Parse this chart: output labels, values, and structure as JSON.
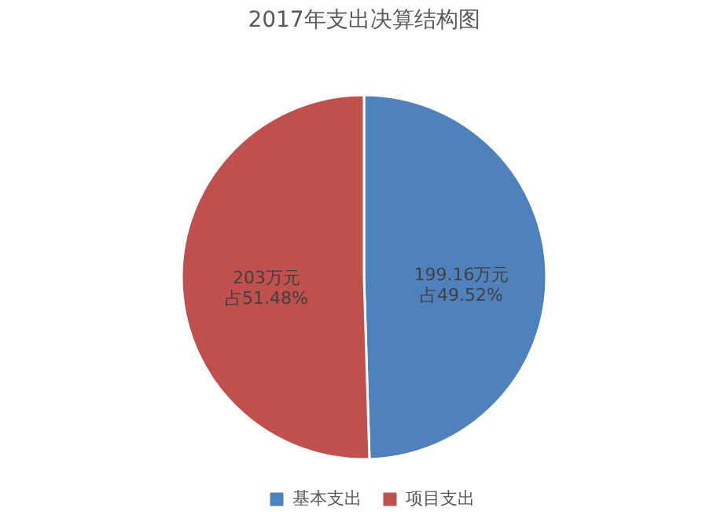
{
  "chart_data": {
    "type": "pie",
    "title": "2017年支出决算结构图",
    "categories": [
      "基本支出",
      "项目支出"
    ],
    "values": [
      199.16,
      203
    ],
    "colors": [
      "#4f81bd",
      "#c0504d"
    ],
    "value_labels": [
      "199.16万元占49.52%",
      "203万元占51.48%"
    ],
    "legend": "bottom"
  }
}
